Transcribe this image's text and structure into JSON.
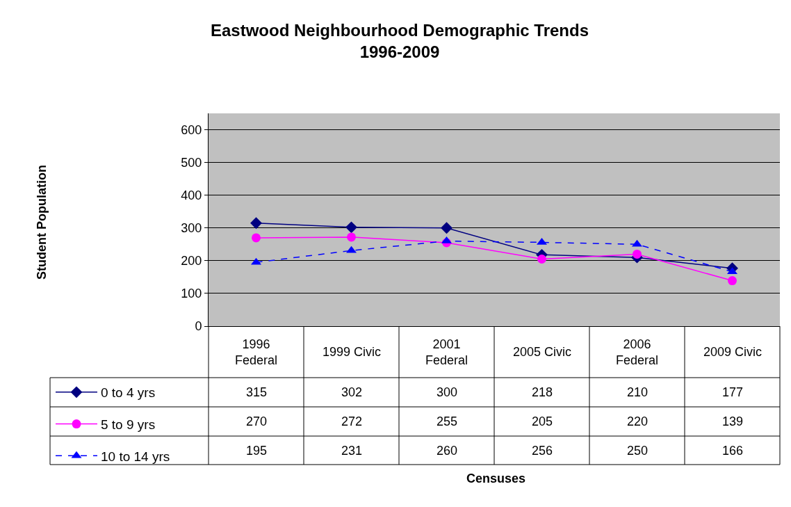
{
  "chart_data": {
    "type": "line",
    "title": "Eastwood Neighbourhood Demographic Trends\n1996-2009",
    "annotations": [
      "Censuses",
      "Student Population"
    ],
    "categories": [
      "1996 Federal",
      "1999 Civic",
      "2001 Federal",
      "2005 Civic",
      "2006 Federal",
      "2009 Civic"
    ],
    "series": [
      {
        "name": "0 to 4 yrs",
        "color": "#000080",
        "marker": "diamond",
        "line_style": "solid",
        "values": [
          315,
          302,
          300,
          218,
          210,
          177
        ]
      },
      {
        "name": "5 to 9 yrs",
        "color": "#ff00ff",
        "marker": "circle",
        "line_style": "solid",
        "values": [
          270,
          272,
          255,
          205,
          220,
          139
        ]
      },
      {
        "name": "10 to 14 yrs",
        "color": "#0000ff",
        "marker": "triangle",
        "line_style": "dashed",
        "values": [
          195,
          231,
          260,
          256,
          250,
          166
        ]
      }
    ],
    "ylim": [
      0,
      650
    ],
    "yticks": [
      0,
      100,
      200,
      300,
      400,
      500,
      600
    ],
    "grid": "y",
    "legend": "bottom left",
    "data_labels": true
  }
}
